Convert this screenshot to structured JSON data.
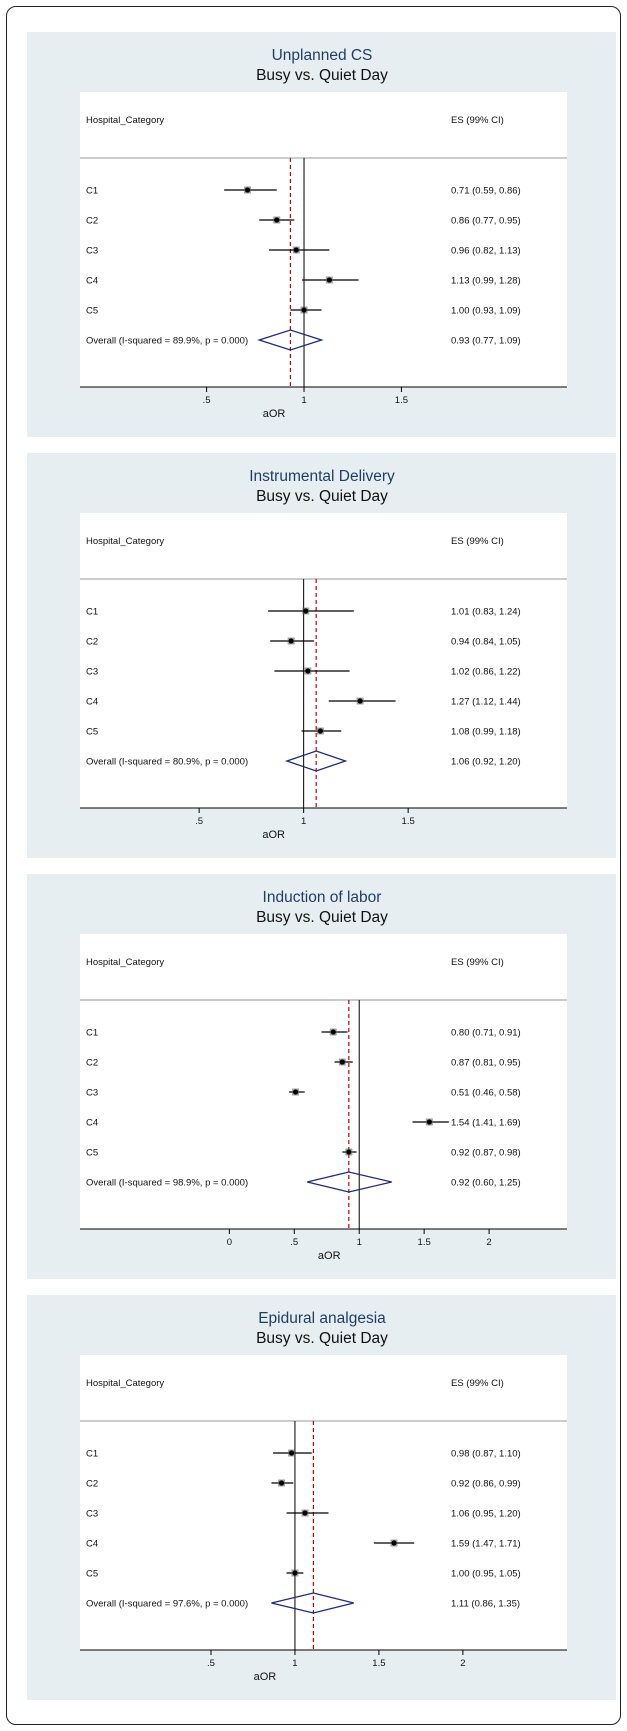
{
  "colors": {
    "panel_bg": "#e7eef1",
    "plot_bg": "#ffffff",
    "title": "#1f3e66",
    "diamond": "#1e2a78",
    "ref_line": "#cc0000",
    "axis": "#000000"
  },
  "chart_data": [
    {
      "type": "forest",
      "title": "Unplanned CS",
      "subtitle": "Busy vs. Quiet Day",
      "left_header": "Hospital_Category",
      "right_header": "ES (99% CI)",
      "xlabel": "aOR",
      "xticks": [
        ".5",
        "1",
        "1.5"
      ],
      "xtick_values": [
        0.5,
        1,
        1.5
      ],
      "xlim": [
        -0.15,
        2.35
      ],
      "null_line": 1,
      "overall_line": 0.93,
      "studies": [
        {
          "label": "C1",
          "es": 0.71,
          "lo": 0.59,
          "hi": 0.86,
          "text": "0.71 (0.59, 0.86)"
        },
        {
          "label": "C2",
          "es": 0.86,
          "lo": 0.77,
          "hi": 0.95,
          "text": "0.86 (0.77, 0.95)"
        },
        {
          "label": "C3",
          "es": 0.96,
          "lo": 0.82,
          "hi": 1.13,
          "text": "0.96 (0.82, 1.13)"
        },
        {
          "label": "C4",
          "es": 1.13,
          "lo": 0.99,
          "hi": 1.28,
          "text": "1.13 (0.99, 1.28)"
        },
        {
          "label": "C5",
          "es": 1.0,
          "lo": 0.93,
          "hi": 1.09,
          "text": "1.00 (0.93, 1.09)"
        }
      ],
      "overall": {
        "label": "Overall  (I-squared = 89.9%, p = 0.000)",
        "es": 0.93,
        "lo": 0.77,
        "hi": 1.09,
        "text": "0.93 (0.77, 1.09)"
      }
    },
    {
      "type": "forest",
      "title": "Instrumental Delivery",
      "subtitle": "Busy vs. Quiet Day",
      "left_header": "Hospital_Category",
      "right_header": "ES (99% CI)",
      "xlabel": "aOR",
      "xticks": [
        ".5",
        "1",
        "1.5"
      ],
      "xtick_values": [
        0.5,
        1,
        1.5
      ],
      "xlim": [
        -0.07,
        2.26
      ],
      "null_line": 1,
      "overall_line": 1.06,
      "studies": [
        {
          "label": "C1",
          "es": 1.01,
          "lo": 0.83,
          "hi": 1.24,
          "text": "1.01 (0.83, 1.24)"
        },
        {
          "label": "C2",
          "es": 0.94,
          "lo": 0.84,
          "hi": 1.05,
          "text": "0.94 (0.84, 1.05)"
        },
        {
          "label": "C3",
          "es": 1.02,
          "lo": 0.86,
          "hi": 1.22,
          "text": "1.02 (0.86, 1.22)"
        },
        {
          "label": "C4",
          "es": 1.27,
          "lo": 1.12,
          "hi": 1.44,
          "text": "1.27 (1.12, 1.44)"
        },
        {
          "label": "C5",
          "es": 1.08,
          "lo": 0.99,
          "hi": 1.18,
          "text": "1.08 (0.99, 1.18)"
        }
      ],
      "overall": {
        "label": "Overall  (I-squared = 80.9%, p = 0.000)",
        "es": 1.06,
        "lo": 0.92,
        "hi": 1.2,
        "text": "1.06 (0.92, 1.20)"
      }
    },
    {
      "type": "forest",
      "title": "Induction of labor",
      "subtitle": "Busy vs. Quiet Day",
      "left_header": "Hospital_Category",
      "right_header": "ES (99% CI)",
      "xlabel": "aOR",
      "xticks": [
        "0",
        ".5",
        "1",
        "1.5",
        "2"
      ],
      "xtick_values": [
        0,
        0.5,
        1,
        1.5,
        2
      ],
      "xlim": [
        -1.15,
        2.6
      ],
      "null_line": 1,
      "overall_line": 0.92,
      "studies": [
        {
          "label": "C1",
          "es": 0.8,
          "lo": 0.71,
          "hi": 0.91,
          "text": "0.80 (0.71, 0.91)"
        },
        {
          "label": "C2",
          "es": 0.87,
          "lo": 0.81,
          "hi": 0.95,
          "text": "0.87 (0.81, 0.95)"
        },
        {
          "label": "C3",
          "es": 0.51,
          "lo": 0.46,
          "hi": 0.58,
          "text": "0.51 (0.46, 0.58)"
        },
        {
          "label": "C4",
          "es": 1.54,
          "lo": 1.41,
          "hi": 1.69,
          "text": "1.54 (1.41, 1.69)"
        },
        {
          "label": "C5",
          "es": 0.92,
          "lo": 0.87,
          "hi": 0.98,
          "text": "0.92 (0.87, 0.98)"
        }
      ],
      "overall": {
        "label": "Overall  (I-squared = 98.9%, p = 0.000)",
        "es": 0.92,
        "lo": 0.6,
        "hi": 1.25,
        "text": "0.92 (0.60, 1.25)"
      }
    },
    {
      "type": "forest",
      "title": "Epidural analgesia",
      "subtitle": "Busy vs. Quiet Day",
      "left_header": "Hospital_Category",
      "right_header": "ES (99% CI)",
      "xlabel": "aOR",
      "xticks": [
        ".5",
        "1",
        "1.5",
        "2"
      ],
      "xtick_values": [
        0.5,
        1,
        1.5,
        2
      ],
      "xlim": [
        -0.28,
        2.62
      ],
      "null_line": 1,
      "overall_line": 1.11,
      "studies": [
        {
          "label": "C1",
          "es": 0.98,
          "lo": 0.87,
          "hi": 1.1,
          "text": "0.98 (0.87, 1.10)"
        },
        {
          "label": "C2",
          "es": 0.92,
          "lo": 0.86,
          "hi": 0.99,
          "text": "0.92 (0.86, 0.99)"
        },
        {
          "label": "C3",
          "es": 1.06,
          "lo": 0.95,
          "hi": 1.2,
          "text": "1.06 (0.95, 1.20)"
        },
        {
          "label": "C4",
          "es": 1.59,
          "lo": 1.47,
          "hi": 1.71,
          "text": "1.59 (1.47, 1.71)"
        },
        {
          "label": "C5",
          "es": 1.0,
          "lo": 0.95,
          "hi": 1.05,
          "text": "1.00 (0.95, 1.05)"
        }
      ],
      "overall": {
        "label": "Overall  (I-squared = 97.6%, p = 0.000)",
        "es": 1.11,
        "lo": 0.86,
        "hi": 1.35,
        "text": "1.11 (0.86, 1.35)"
      }
    }
  ]
}
